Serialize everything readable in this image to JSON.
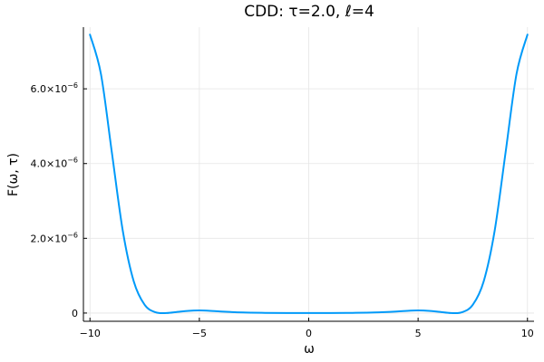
{
  "chart_data": {
    "type": "line",
    "title": "CDD: τ=2.0, ℓ=4",
    "xlabel": "ω",
    "ylabel": "F(ω, τ)",
    "xlim": [
      -10.3,
      10.3
    ],
    "ylim": [
      -2.2e-07,
      7.65e-06
    ],
    "x_ticks": [
      -10,
      -5,
      0,
      5,
      10
    ],
    "x_tick_labels": [
      "−10",
      "−5",
      "0",
      "5",
      "10"
    ],
    "y_ticks": [
      0,
      2e-06,
      4e-06,
      6e-06
    ],
    "y_tick_labels": [
      {
        "mantissa": "0",
        "exponent": ""
      },
      {
        "mantissa": "2.0×10",
        "exponent": "−6"
      },
      {
        "mantissa": "4.0×10",
        "exponent": "−6"
      },
      {
        "mantissa": "6.0×10",
        "exponent": "−6"
      }
    ],
    "grid": true,
    "legend": "none",
    "line_color": "#009af9",
    "series": [
      {
        "x": [
          -10.0,
          -9.5,
          -9.0,
          -8.5,
          -8.0,
          -7.5,
          -7.0,
          -6.5,
          -6.0,
          -5.5,
          -5.0,
          -4.5,
          -4.0,
          -3.0,
          -2.0,
          -1.0,
          0.0,
          1.0,
          2.0,
          3.0,
          4.0,
          4.5,
          5.0,
          5.5,
          6.0,
          6.5,
          7.0,
          7.5,
          8.0,
          8.5,
          9.0,
          9.5,
          10.0
        ],
        "values": [
          7.45e-06,
          6.4e-06,
          4.3e-06,
          2.2e-06,
          8.5e-07,
          2.2e-07,
          2e-08,
          0.0,
          3e-08,
          6e-08,
          7e-08,
          6e-08,
          4e-08,
          1.5e-08,
          5e-09,
          1e-09,
          0.0,
          1e-09,
          5e-09,
          1.5e-08,
          4e-08,
          6e-08,
          7e-08,
          6e-08,
          3e-08,
          0.0,
          2e-08,
          2.2e-07,
          8.5e-07,
          2.2e-06,
          4.3e-06,
          6.4e-06,
          7.45e-06
        ]
      }
    ]
  }
}
